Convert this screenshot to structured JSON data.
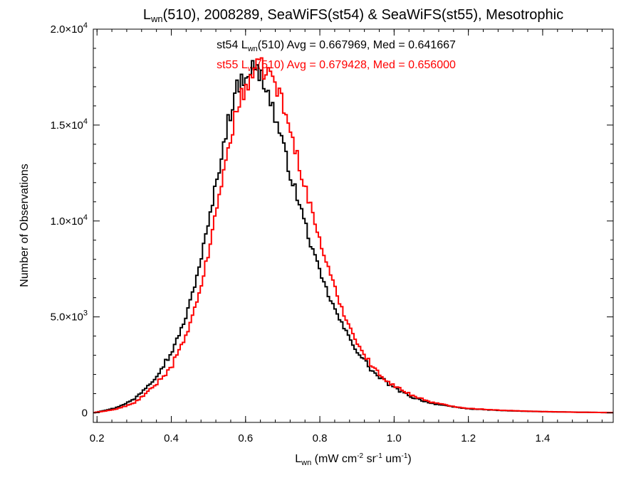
{
  "chart_data": {
    "type": "line",
    "title": {
      "main": "L",
      "sub": "wn",
      "rest": "(510), 2008289, SeaWiFS(st54) & SeaWiFS(st55), Mesotrophic"
    },
    "xlabel": {
      "main": "L",
      "sub": "wn",
      "unit_open": " (mW cm",
      "s1": "-2",
      "u2": " sr",
      "s2": "-1",
      "u3": " um",
      "s3": "-1",
      "unit_close": ")"
    },
    "ylabel": "Number of Observations",
    "xlim": [
      0.19,
      1.59
    ],
    "ylim": [
      -500,
      20000
    ],
    "xticks": [
      0.2,
      0.4,
      0.6,
      0.8,
      1.0,
      1.2,
      1.4
    ],
    "xtick_labels": [
      "0.2",
      "0.4",
      "0.6",
      "0.8",
      "1.0",
      "1.2",
      "1.4"
    ],
    "yticks": [
      0,
      5000,
      10000,
      15000,
      20000
    ],
    "ytick_labels": [
      {
        "m": "0",
        "e": ""
      },
      {
        "m": "5.0×10",
        "e": "3"
      },
      {
        "m": "1.0×10",
        "e": "4"
      },
      {
        "m": "1.5×10",
        "e": "4"
      },
      {
        "m": "2.0×10",
        "e": "4"
      }
    ],
    "bin_width": 0.006,
    "series": [
      {
        "name": "st54",
        "color": "#000000",
        "annotation": {
          "a": "st54 L",
          "sub": "wn",
          "b": "(510) Avg = 0.667969, Med = 0.641667"
        },
        "x": [
          0.19,
          0.25,
          0.3,
          0.35,
          0.4,
          0.44,
          0.47,
          0.5,
          0.53,
          0.55,
          0.57,
          0.59,
          0.6,
          0.61,
          0.62,
          0.63,
          0.64,
          0.65,
          0.66,
          0.67,
          0.68,
          0.7,
          0.72,
          0.74,
          0.76,
          0.78,
          0.8,
          0.82,
          0.84,
          0.86,
          0.88,
          0.9,
          0.92,
          0.95,
          1.0,
          1.05,
          1.1,
          1.15,
          1.2,
          1.3,
          1.4,
          1.5,
          1.59
        ],
        "y": [
          0,
          250,
          700,
          1700,
          3100,
          5000,
          7200,
          9800,
          12900,
          14900,
          16600,
          17400,
          17700,
          17900,
          18000,
          17800,
          17600,
          17300,
          16700,
          16100,
          15400,
          14000,
          12500,
          11200,
          9900,
          8500,
          7300,
          6300,
          5400,
          4600,
          3900,
          3200,
          2700,
          2000,
          1300,
          800,
          500,
          330,
          210,
          110,
          60,
          30,
          10
        ]
      },
      {
        "name": "st55",
        "color": "#ff0000",
        "annotation": {
          "a": "st55 L",
          "sub": "wn",
          "b": "(510) Avg = 0.679428, Med = 0.656000"
        },
        "x": [
          0.19,
          0.25,
          0.3,
          0.35,
          0.4,
          0.44,
          0.47,
          0.5,
          0.53,
          0.55,
          0.57,
          0.59,
          0.6,
          0.61,
          0.62,
          0.63,
          0.64,
          0.65,
          0.66,
          0.67,
          0.68,
          0.7,
          0.72,
          0.74,
          0.76,
          0.78,
          0.8,
          0.82,
          0.84,
          0.86,
          0.88,
          0.9,
          0.92,
          0.95,
          1.0,
          1.05,
          1.1,
          1.15,
          1.2,
          1.3,
          1.4,
          1.5,
          1.59
        ],
        "y": [
          0,
          180,
          500,
          1300,
          2400,
          4000,
          5800,
          8300,
          11500,
          13400,
          15300,
          16500,
          17000,
          17400,
          17700,
          17900,
          18000,
          17900,
          17800,
          17500,
          17200,
          16100,
          14700,
          13300,
          11800,
          10400,
          9000,
          7700,
          6500,
          5400,
          4500,
          3700,
          3000,
          2200,
          1400,
          900,
          560,
          360,
          230,
          120,
          65,
          30,
          10
        ]
      }
    ]
  }
}
